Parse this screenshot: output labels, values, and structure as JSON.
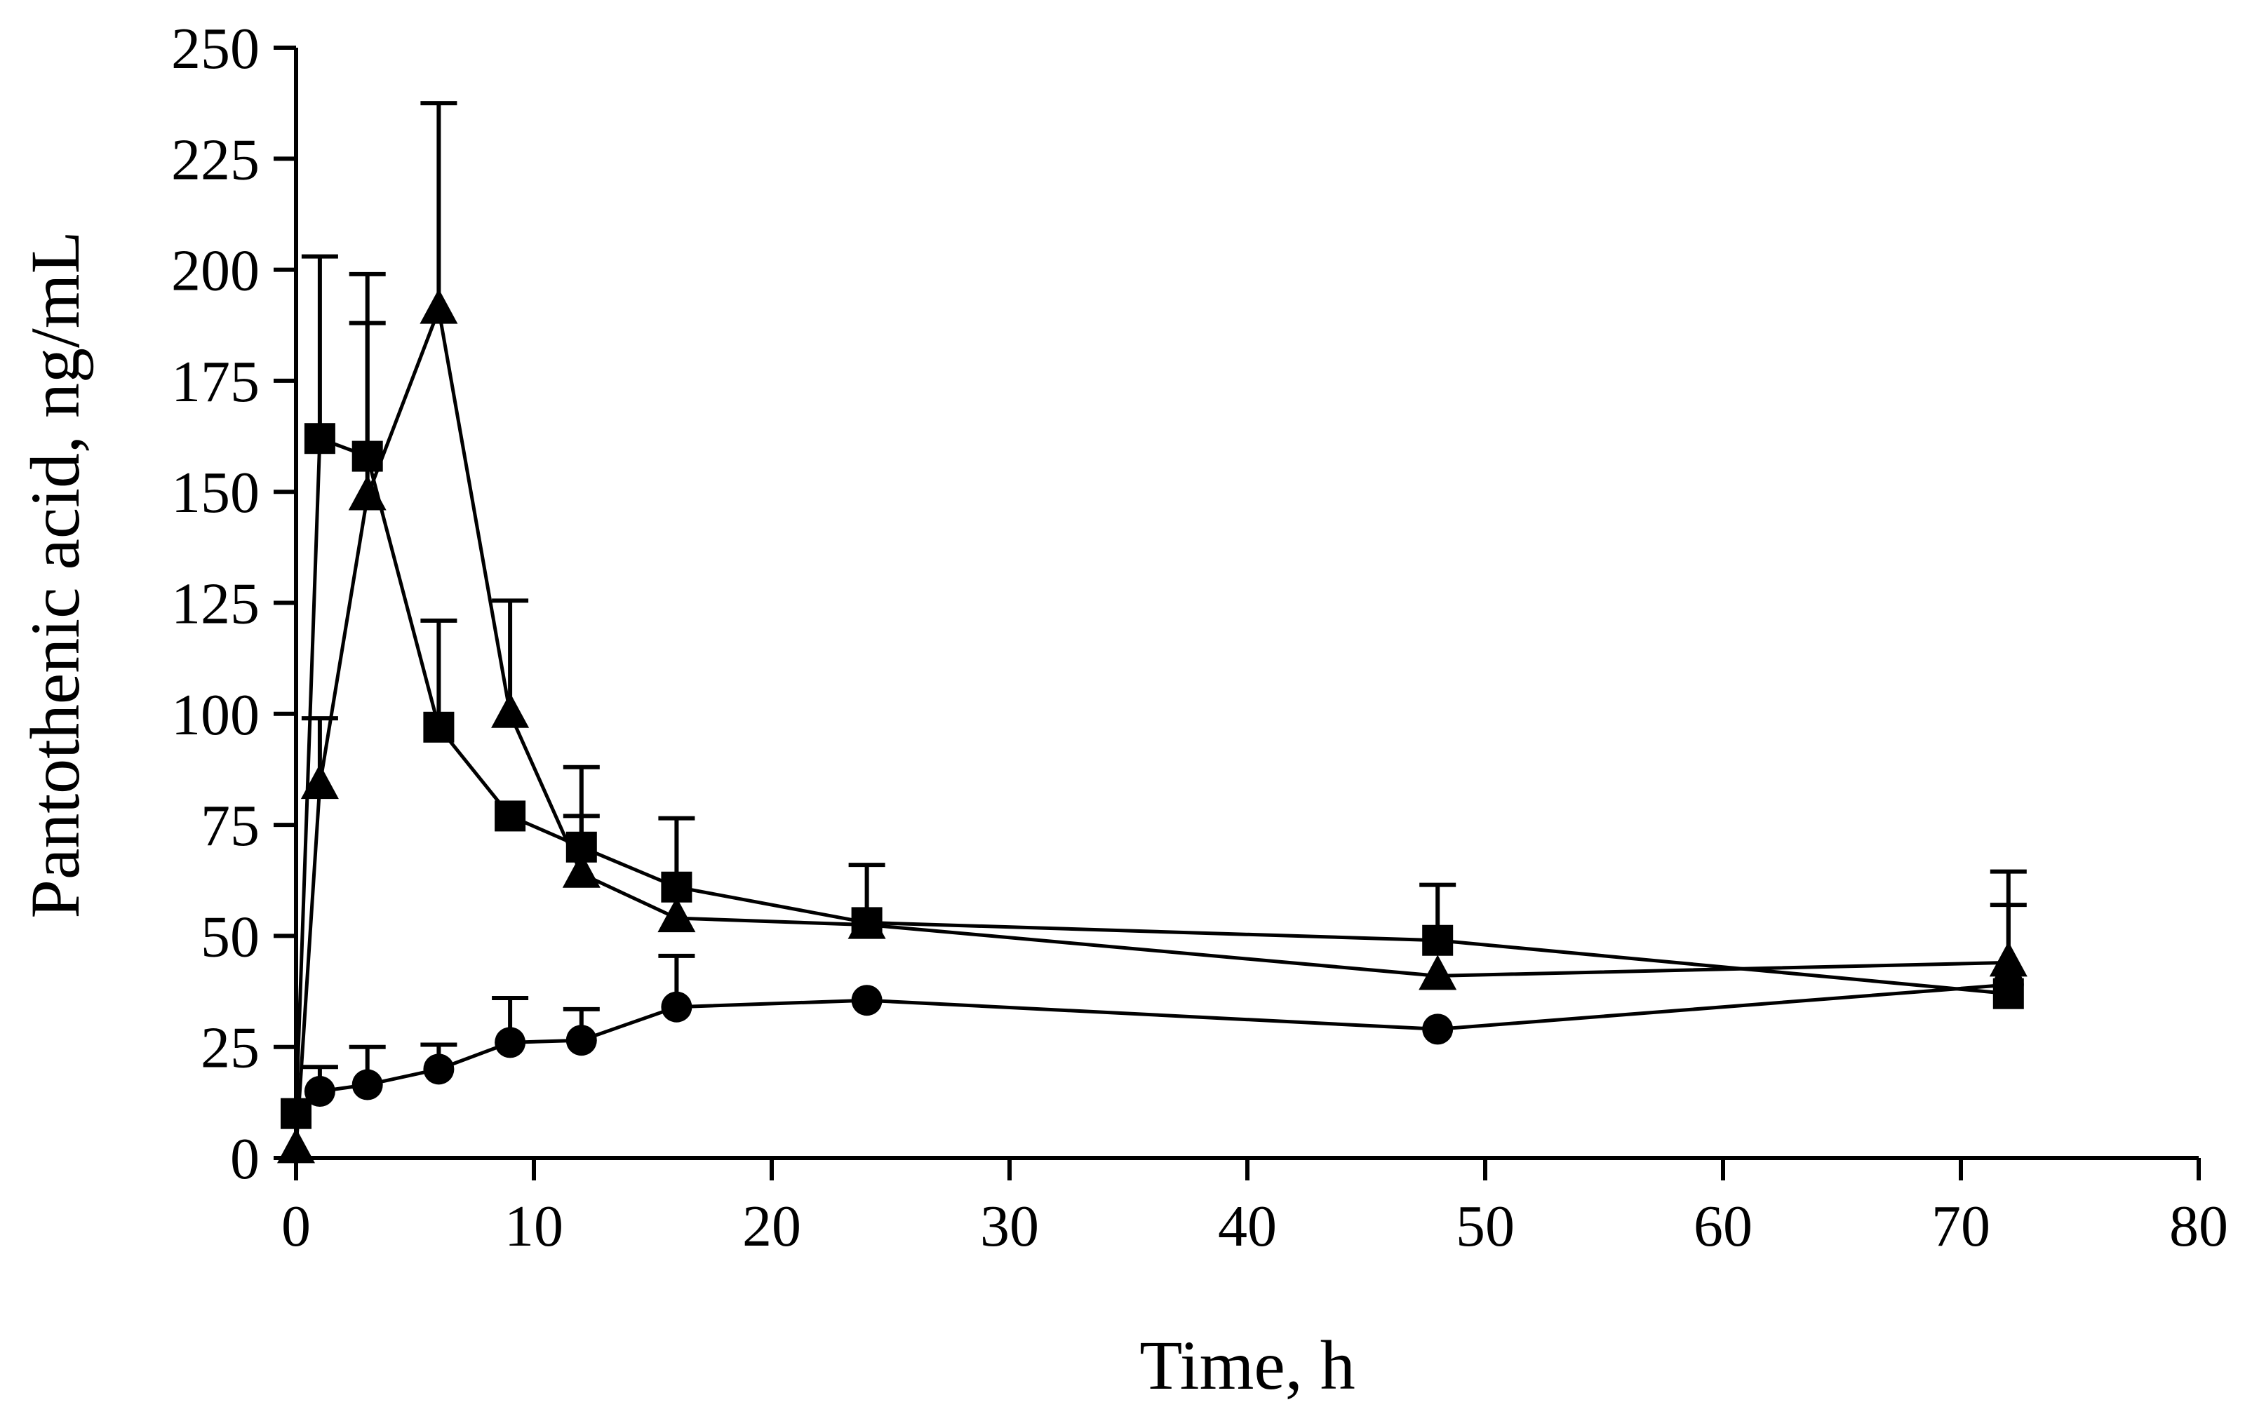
{
  "chart_data": {
    "type": "line",
    "title": "",
    "xlabel": "Time, h",
    "ylabel": "Pantothenic acid, ng/mL",
    "xlim": [
      0,
      80
    ],
    "ylim": [
      0,
      250
    ],
    "xticks": [
      0,
      10,
      20,
      30,
      40,
      50,
      60,
      70,
      80
    ],
    "xtick_labels": [
      "0",
      "10",
      "20",
      "30",
      "40",
      "50",
      "60",
      "70",
      "80"
    ],
    "yticks": [
      0,
      25,
      50,
      75,
      100,
      125,
      150,
      175,
      200,
      225,
      250
    ],
    "ytick_labels": [
      "0",
      "25",
      "50",
      "75",
      "100",
      "125",
      "150",
      "175",
      "200",
      "225",
      "250"
    ],
    "grid": false,
    "legend": "none",
    "series": [
      {
        "name": "circle series",
        "marker": "circle",
        "x": [
          0,
          1,
          3,
          6,
          9,
          12,
          16,
          24,
          48,
          72
        ],
        "values": [
          10,
          15,
          16.5,
          20,
          26,
          26.5,
          34,
          35.5,
          29,
          39
        ],
        "error_upper": [
          null,
          20.5,
          25,
          25.5,
          36,
          33.5,
          45.5,
          null,
          null,
          null
        ]
      },
      {
        "name": "square series",
        "marker": "square",
        "x": [
          0,
          1,
          3,
          6,
          9,
          12,
          16,
          24,
          48,
          72
        ],
        "values": [
          10,
          162,
          158,
          97,
          77,
          70,
          61,
          53,
          49,
          37
        ],
        "error_upper": [
          null,
          203,
          199,
          121,
          null,
          88,
          76.5,
          66,
          61.5,
          57
        ]
      },
      {
        "name": "triangle series",
        "marker": "triangle",
        "x": [
          0,
          1,
          3,
          6,
          9,
          12,
          16,
          24,
          48,
          72
        ],
        "values": [
          2,
          84,
          149,
          191,
          100,
          64,
          54,
          52.5,
          41,
          44
        ],
        "error_upper": [
          null,
          99,
          188,
          237.5,
          125.5,
          77,
          null,
          null,
          null,
          64.5
        ]
      }
    ]
  }
}
